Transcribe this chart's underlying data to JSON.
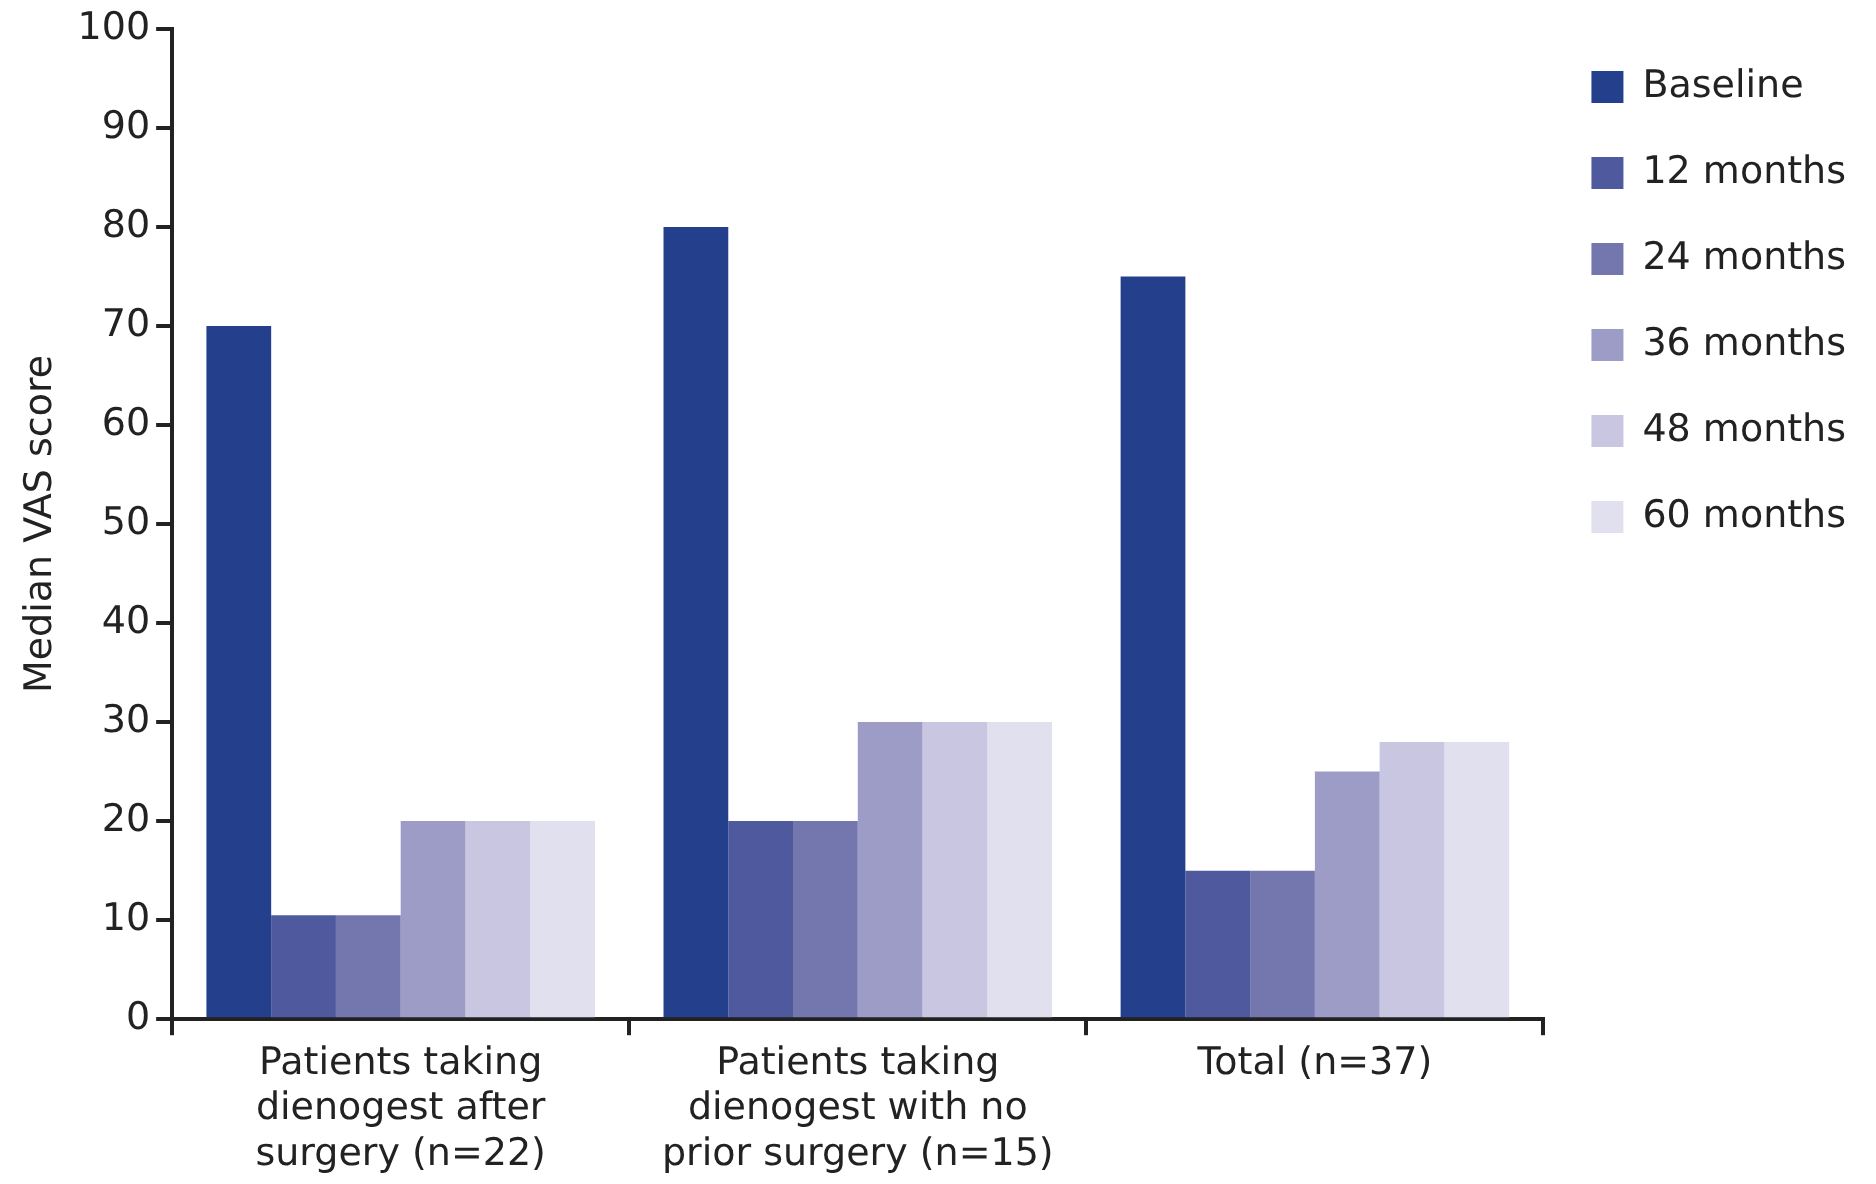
{
  "chart_data": {
    "type": "bar",
    "ylabel": "Median VAS score",
    "categories": [
      "Patients taking dienogest after surgery (n=22)",
      "Patients taking dienogest with no prior surgery (n=15)",
      "Total (n=37)"
    ],
    "series": [
      {
        "name": "Baseline",
        "color": "#243f8c",
        "values": [
          70,
          80,
          75
        ]
      },
      {
        "name": "12 months",
        "color": "#4f5a9e",
        "values": [
          10.5,
          20,
          15
        ]
      },
      {
        "name": "24 months",
        "color": "#7477ae",
        "values": [
          10.5,
          20,
          15
        ]
      },
      {
        "name": "36 months",
        "color": "#9c9cc7",
        "values": [
          20,
          30,
          25
        ]
      },
      {
        "name": "48 months",
        "color": "#c8c6e0",
        "values": [
          20,
          30,
          28
        ]
      },
      {
        "name": "60 months",
        "color": "#e0e0ee",
        "values": [
          20,
          30,
          28
        ]
      }
    ],
    "ylim": [
      0,
      100
    ],
    "yticks": [
      0,
      10,
      20,
      30,
      40,
      50,
      60,
      70,
      80,
      90,
      100
    ],
    "grid": false,
    "legend": "right"
  }
}
